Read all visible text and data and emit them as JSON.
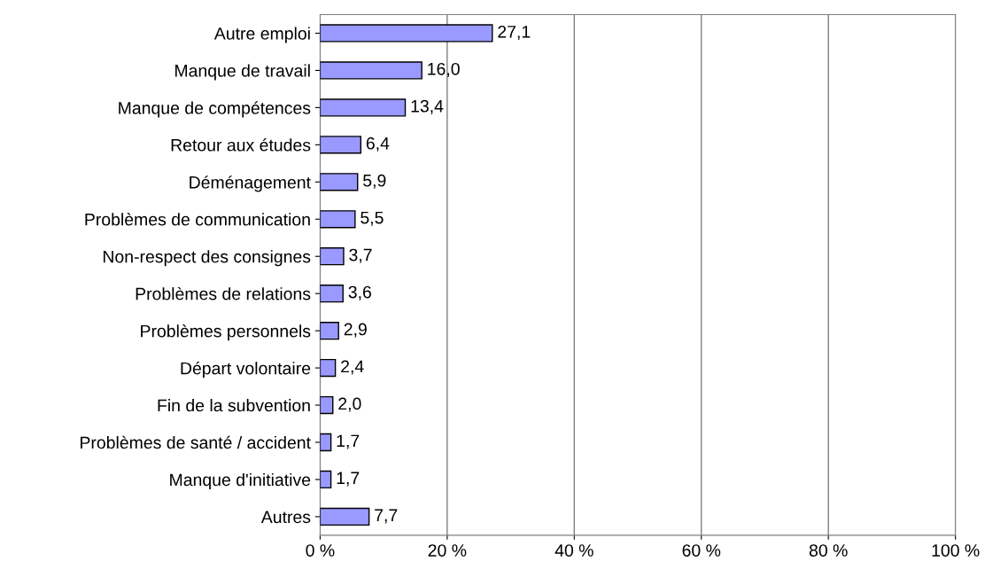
{
  "chart_data": {
    "type": "bar",
    "orientation": "horizontal",
    "categories": [
      "Autre emploi",
      "Manque de travail",
      "Manque de compétences",
      "Retour aux études",
      "Déménagement",
      "Problèmes de communication",
      "Non-respect des consignes",
      "Problèmes de relations",
      "Problèmes personnels",
      "Départ volontaire",
      "Fin de la subvention",
      "Problèmes de santé / accident",
      "Manque d'initiative",
      "Autres"
    ],
    "values": [
      27.1,
      16.0,
      13.4,
      6.4,
      5.9,
      5.5,
      3.7,
      3.6,
      2.9,
      2.4,
      2.0,
      1.7,
      1.7,
      7.7
    ],
    "value_labels": [
      "27,1",
      "16,0",
      "13,4",
      "6,4",
      "5,9",
      "5,5",
      "3,7",
      "3,6",
      "2,9",
      "2,4",
      "2,0",
      "1,7",
      "1,7",
      "7,7"
    ],
    "color": "#9999ff",
    "xlim": [
      0,
      100
    ],
    "xticks": [
      {
        "value": 0,
        "label": "0 %"
      },
      {
        "value": 20,
        "label": "20 %"
      },
      {
        "value": 40,
        "label": "40 %"
      },
      {
        "value": 60,
        "label": "60 %"
      },
      {
        "value": 80,
        "label": "80 %"
      },
      {
        "value": 100,
        "label": "100 %"
      }
    ],
    "grid": "x"
  }
}
